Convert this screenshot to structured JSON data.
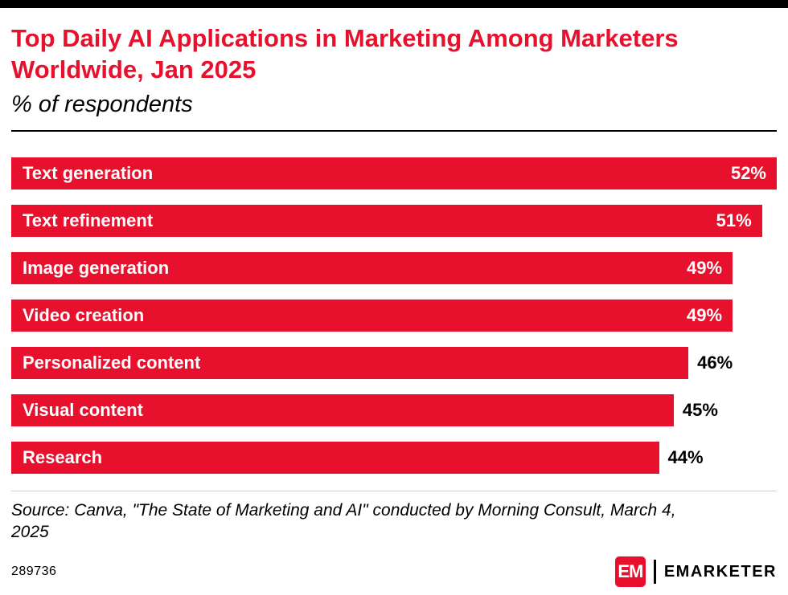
{
  "page": {
    "title": "Top Daily AI Applications in Marketing Among Marketers Worldwide, Jan 2025",
    "subtitle": "% of respondents",
    "source": "Source: Canva, \"The State of Marketing and AI\" conducted by Morning Consult, March 4, 2025",
    "chart_id": "289736",
    "brand": {
      "logo_letters": "EM",
      "name": "EMARKETER"
    }
  },
  "colors": {
    "accent_red": "#e8112d",
    "bar_red": "#e8112d",
    "text_black": "#000000",
    "bar_label_white": "#ffffff"
  },
  "chart_data": {
    "type": "bar",
    "orientation": "horizontal",
    "title": "Top Daily AI Applications in Marketing Among Marketers Worldwide, Jan 2025",
    "subtitle": "% of respondents",
    "categories": [
      "Text generation",
      "Text refinement",
      "Image generation",
      "Video creation",
      "Personalized content",
      "Visual content",
      "Research"
    ],
    "values": [
      52,
      51,
      49,
      49,
      46,
      45,
      44
    ],
    "value_suffix": "%",
    "xlim": [
      0,
      52
    ],
    "grid": false,
    "legend": "none",
    "value_label_position": [
      "inside",
      "inside",
      "inside",
      "inside",
      "outside",
      "outside",
      "outside"
    ]
  }
}
